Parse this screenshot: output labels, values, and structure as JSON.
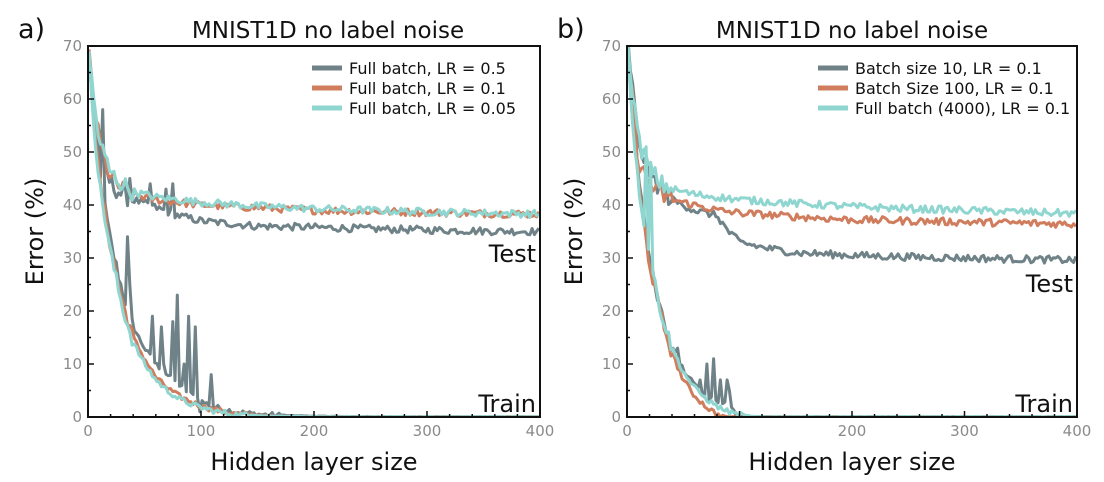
{
  "colors": {
    "gray": "#6f8287",
    "orange": "#d07d5e",
    "cyan": "#8fd6d0",
    "tick_text": "#8a8a8a"
  },
  "chart_data": [
    {
      "panel_letter": "a)",
      "type": "line",
      "title": "MNIST1D no label noise",
      "xlabel": "Hidden layer size",
      "ylabel": "Error (%)",
      "xlim": [
        0,
        400
      ],
      "ylim": [
        0,
        70
      ],
      "xticks": [
        "0",
        "100",
        "200",
        "300",
        "400"
      ],
      "yticks": [
        "0",
        "10",
        "20",
        "30",
        "40",
        "50",
        "60",
        "70"
      ],
      "grid": false,
      "legend_position": "top-right",
      "annotations": {
        "test": "Test",
        "train": "Train"
      },
      "series": [
        {
          "name": "Full batch, LR = 0.5",
          "color_key": "gray",
          "test": {
            "x": [
              1,
              5,
              10,
              20,
              30,
              40,
              60,
              80,
              100,
              150,
              200,
              250,
              300,
              350,
              400
            ],
            "y": [
              68,
              60,
              50,
              44,
              42,
              41,
              39.5,
              38,
              37,
              36,
              35.8,
              35.5,
              35.3,
              35.1,
              35
            ]
          },
          "train": {
            "x": [
              1,
              5,
              10,
              20,
              30,
              40,
              50,
              60,
              70,
              80,
              90,
              100,
              110,
              120,
              130,
              150,
              170,
              200,
              250,
              300,
              400
            ],
            "y": [
              68,
              58,
              46,
              33,
              24,
              17,
              13,
              10,
              8,
              6,
              4.5,
              3,
              2,
              1.5,
              1,
              0.5,
              0.3,
              0.1,
              0,
              0,
              0
            ]
          },
          "spikes": [
            [
              13,
              58
            ],
            [
              35,
              34
            ],
            [
              37,
              25
            ],
            [
              57,
              19
            ],
            [
              65,
              17
            ],
            [
              68,
              10
            ],
            [
              75,
              18
            ],
            [
              80,
              23
            ],
            [
              85,
              10
            ],
            [
              90,
              19
            ],
            [
              95,
              17
            ],
            [
              100,
              1
            ],
            [
              110,
              8
            ]
          ]
        },
        {
          "name": "Full batch, LR = 0.1",
          "color_key": "orange",
          "test": {
            "x": [
              1,
              5,
              10,
              20,
              30,
              40,
              60,
              80,
              100,
              150,
              200,
              250,
              300,
              350,
              400
            ],
            "y": [
              68,
              60,
              52,
              45,
              43,
              42,
              41,
              40.5,
              40,
              39.5,
              39,
              38.8,
              38.6,
              38.4,
              38.3
            ]
          },
          "train": {
            "x": [
              1,
              5,
              10,
              20,
              30,
              40,
              50,
              60,
              70,
              80,
              90,
              100,
              110,
              120,
              130,
              150,
              170,
              200,
              250,
              300,
              400
            ],
            "y": [
              68,
              57,
              45,
              32,
              22,
              15,
              11,
              7.5,
              5.5,
              4,
              3,
              2,
              1.5,
              1,
              0.6,
              0.3,
              0.1,
              0,
              0,
              0,
              0
            ]
          },
          "spikes": []
        },
        {
          "name": "Full batch, LR = 0.05",
          "color_key": "cyan",
          "test": {
            "x": [
              1,
              5,
              10,
              20,
              30,
              40,
              60,
              80,
              100,
              150,
              200,
              250,
              300,
              350,
              400
            ],
            "y": [
              68,
              60,
              52,
              46,
              44,
              42.5,
              41.5,
              41,
              40.5,
              39.8,
              39.3,
              39,
              38.7,
              38.5,
              38.3
            ]
          },
          "train": {
            "x": [
              1,
              5,
              10,
              20,
              30,
              40,
              50,
              60,
              70,
              80,
              90,
              100,
              110,
              120,
              130,
              150,
              170,
              200,
              250,
              300,
              400
            ],
            "y": [
              68,
              56,
              44,
              31,
              21,
              14,
              10,
              7,
              5,
              3.5,
              2.5,
              1.8,
              1.2,
              0.8,
              0.5,
              0.2,
              0.1,
              0,
              0,
              0,
              0
            ]
          },
          "spikes": []
        }
      ]
    },
    {
      "panel_letter": "b)",
      "type": "line",
      "title": "MNIST1D no label noise",
      "xlabel": "Hidden layer size",
      "ylabel": "Error (%)",
      "xlim": [
        0,
        400
      ],
      "ylim": [
        0,
        70
      ],
      "xticks": [
        "0",
        "200",
        "300",
        "400"
      ],
      "yticks": [
        "0",
        "10",
        "20",
        "30",
        "40",
        "50",
        "60",
        "70"
      ],
      "grid": false,
      "legend_position": "top-right",
      "annotations": {
        "test": "Test",
        "train": "Train"
      },
      "series": [
        {
          "name": "Batch size 10, LR = 0.1",
          "color_key": "gray",
          "test": {
            "x": [
              1,
              5,
              10,
              20,
              30,
              40,
              60,
              80,
              90,
              100,
              120,
              150,
              200,
              250,
              300,
              350,
              400
            ],
            "y": [
              70,
              62,
              52,
              46,
              43,
              41,
              39,
              38,
              35,
              33,
              32,
              31,
              30.5,
              30.2,
              30,
              29.8,
              29.6
            ]
          },
          "train": {
            "x": [
              1,
              5,
              10,
              20,
              30,
              40,
              50,
              60,
              70,
              80,
              85,
              90,
              95,
              100,
              110,
              150,
              200,
              400
            ],
            "y": [
              70,
              58,
              45,
              30,
              20,
              13,
              9,
              6,
              4,
              3,
              3,
              2,
              1,
              0,
              0,
              0,
              0,
              0
            ]
          },
          "spikes": [
            [
              27,
              22
            ],
            [
              31,
              20
            ],
            [
              45,
              13
            ],
            [
              65,
              7
            ],
            [
              72,
              10
            ],
            [
              78,
              11
            ],
            [
              84,
              7
            ],
            [
              90,
              7
            ],
            [
              92,
              5
            ]
          ]
        },
        {
          "name": "Batch Size 100, LR = 0.1",
          "color_key": "orange",
          "test": {
            "x": [
              1,
              5,
              10,
              20,
              30,
              40,
              60,
              80,
              100,
              150,
              200,
              250,
              300,
              350,
              400
            ],
            "y": [
              69,
              60,
              48,
              44,
              42,
              41,
              40,
              39,
              38.5,
              37.8,
              37.2,
              37,
              36.8,
              36.6,
              36.4
            ]
          },
          "train": {
            "x": [
              1,
              5,
              10,
              20,
              30,
              40,
              50,
              60,
              70,
              80,
              90,
              100,
              120,
              150,
              200,
              400
            ],
            "y": [
              68,
              56,
              44,
              29,
              19,
              12,
              7,
              4,
              2,
              0.5,
              0,
              0,
              0,
              0,
              0,
              0
            ]
          },
          "spikes": []
        },
        {
          "name": "Full batch (4000), LR = 0.1",
          "color_key": "cyan",
          "test": {
            "x": [
              1,
              5,
              10,
              20,
              30,
              40,
              60,
              80,
              100,
              150,
              200,
              250,
              300,
              350,
              400
            ],
            "y": [
              69,
              62,
              52,
              47,
              44,
              43,
              42,
              41.5,
              41,
              40.3,
              39.7,
              39.3,
              39,
              38.7,
              38.4
            ]
          },
          "train": {
            "x": [
              1,
              5,
              10,
              20,
              30,
              40,
              50,
              60,
              70,
              80,
              90,
              100,
              110,
              120,
              150,
              200,
              400
            ],
            "y": [
              68,
              56,
              44,
              30,
              20,
              13,
              8.5,
              5.5,
              3.5,
              2,
              1,
              0.4,
              0.1,
              0,
              0,
              0,
              0
            ]
          },
          "spikes": [
            [
              17,
              51
            ],
            [
              21,
              48
            ]
          ]
        }
      ]
    }
  ]
}
